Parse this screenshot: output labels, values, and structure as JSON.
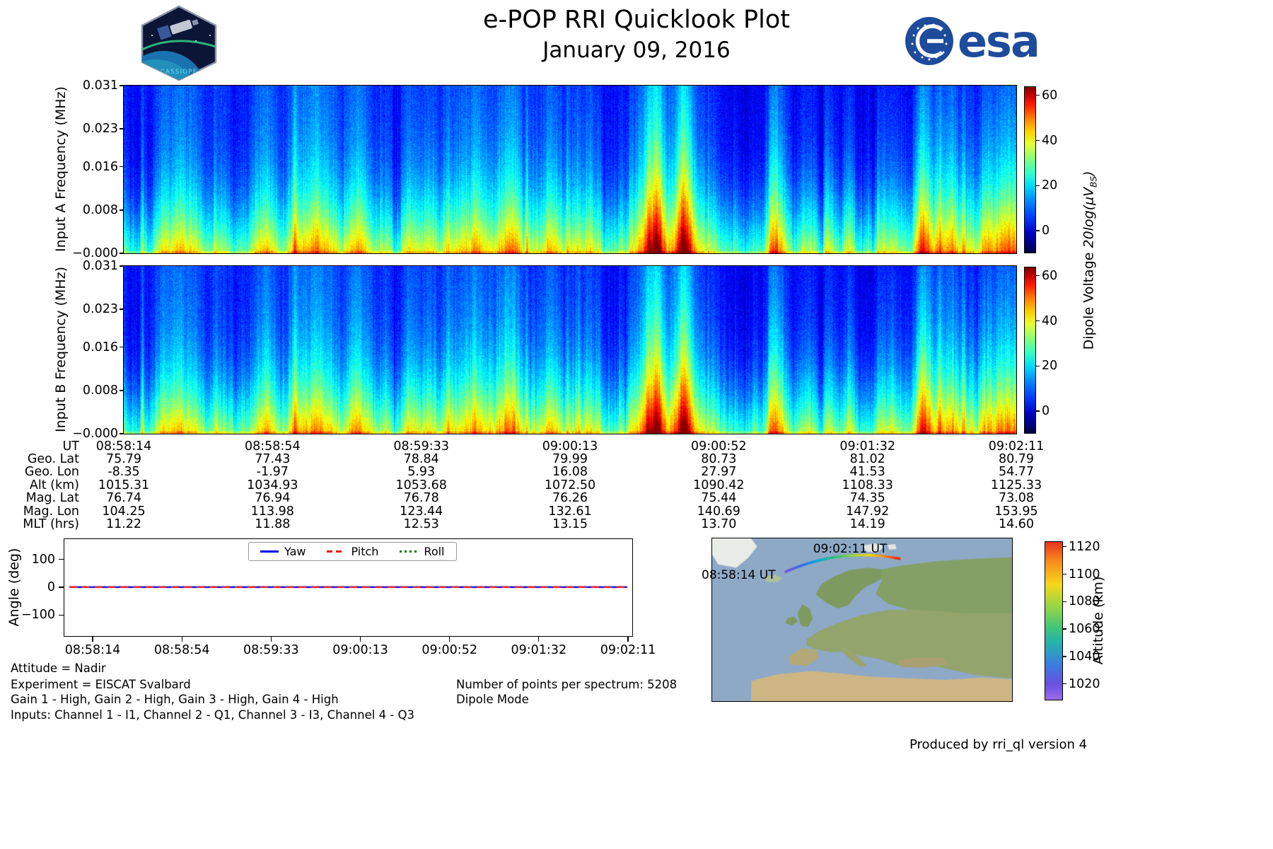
{
  "header": {
    "title": "e-POP RRI Quicklook Plot",
    "date": "January 09, 2016",
    "cassiope_label": "CASSIOPE",
    "esa_label": "esa"
  },
  "colors": {
    "esa_blue": "#1e4b9b",
    "yaw": "#0000ee",
    "pitch": "#ee1111",
    "roll": "#007700",
    "ocean": "#8ea9c6"
  },
  "colorbar_label": {
    "prefix": "Dipole Voltage ",
    "math": "20log(μV",
    "sub": "BS",
    "suffix": ")"
  },
  "chart_data": [
    {
      "type": "heatmap",
      "name": "input-a-spectrogram",
      "ylabel": "Input A Frequency (MHz)",
      "ytick_labels": [
        "0.031",
        "0.023",
        "0.016",
        "0.008",
        "−0.000"
      ],
      "ytick_values": [
        0.031,
        0.023,
        0.016,
        0.008,
        0.0
      ],
      "ylim": [
        0,
        0.031
      ],
      "x_start": "08:58:14",
      "x_end": "09:02:11",
      "description": "Broadband HF noise spectrogram: mostly blue 0-25 dB background with fine vertical striation, full-height green streaks near 08:58:30-08:59:00, dark navy columns in right half, bright green 25-40 dB band along the bottom (0-0.004 MHz)",
      "colorbar": {
        "ticks": [
          "60",
          "40",
          "20",
          "0"
        ],
        "tick_values": [
          60,
          40,
          20,
          0
        ],
        "range": [
          -10,
          64
        ],
        "colormap": "jet"
      }
    },
    {
      "type": "heatmap",
      "name": "input-b-spectrogram",
      "ylabel": "Input B Frequency (MHz)",
      "ytick_labels": [
        "0.031",
        "0.023",
        "0.016",
        "0.008",
        "−0.000"
      ],
      "ytick_values": [
        0.031,
        0.023,
        0.016,
        0.008,
        0.0
      ],
      "ylim": [
        0,
        0.031
      ],
      "x_start": "08:58:14",
      "x_end": "09:02:11",
      "description": "Same streak structure as Input A spectrogram",
      "colorbar": {
        "ticks": [
          "60",
          "40",
          "20",
          "0"
        ],
        "tick_values": [
          60,
          40,
          20,
          0
        ],
        "range": [
          -10,
          64
        ],
        "colormap": "jet"
      }
    },
    {
      "type": "table",
      "name": "ephemeris-table",
      "rows": [
        {
          "label": "UT",
          "values": [
            "08:58:14",
            "08:58:54",
            "08:59:33",
            "09:00:13",
            "09:00:52",
            "09:01:32",
            "09:02:11"
          ]
        },
        {
          "label": "Geo. Lat",
          "values": [
            "75.79",
            "77.43",
            "78.84",
            "79.99",
            "80.73",
            "81.02",
            "80.79"
          ]
        },
        {
          "label": "Geo. Lon",
          "values": [
            "-8.35",
            "-1.97",
            "5.93",
            "16.08",
            "27.97",
            "41.53",
            "54.77"
          ]
        },
        {
          "label": "Alt (km)",
          "values": [
            "1015.31",
            "1034.93",
            "1053.68",
            "1072.50",
            "1090.42",
            "1108.33",
            "1125.33"
          ]
        },
        {
          "label": "Mag. Lat",
          "values": [
            "76.74",
            "76.94",
            "76.78",
            "76.26",
            "75.44",
            "74.35",
            "73.08"
          ]
        },
        {
          "label": "Mag. Lon",
          "values": [
            "104.25",
            "113.98",
            "123.44",
            "132.61",
            "140.69",
            "147.92",
            "153.95"
          ]
        },
        {
          "label": "MLT (hrs)",
          "values": [
            "11.22",
            "11.88",
            "12.53",
            "13.15",
            "13.70",
            "14.19",
            "14.60"
          ]
        }
      ]
    },
    {
      "type": "line",
      "name": "attitude-angle-plot",
      "ylabel": "Angle (deg)",
      "ytick_labels": [
        "100",
        "0",
        "−100"
      ],
      "ytick_values": [
        100,
        0,
        -100
      ],
      "ylim": [
        -178,
        175
      ],
      "xtick_labels": [
        "08:58:14",
        "08:58:54",
        "08:59:33",
        "09:00:13",
        "09:00:52",
        "09:01:32",
        "09:02:11"
      ],
      "series": [
        {
          "name": "Yaw",
          "color": "#0000ee",
          "style": "solid",
          "values": [
            0,
            0,
            0,
            0,
            0,
            0,
            0
          ]
        },
        {
          "name": "Pitch",
          "color": "#ee1111",
          "style": "dashed",
          "values": [
            0,
            0,
            0,
            0,
            0,
            0,
            0
          ]
        },
        {
          "name": "Roll",
          "color": "#007700",
          "style": "dotted",
          "values": [
            0,
            0,
            0,
            0,
            0,
            0,
            0
          ]
        }
      ],
      "legend_position": "top-center"
    },
    {
      "type": "map",
      "name": "ground-track-map",
      "region": "Europe / North Atlantic / Greenland / Svalbard",
      "track": {
        "start_label": "08:58:14 UT",
        "end_label": "09:02:11 UT",
        "start_alt_km": 1015.31,
        "end_alt_km": 1125.33
      },
      "colorbar": {
        "label": "Altitude (km)",
        "ticks": [
          "1120",
          "1100",
          "1080",
          "1060",
          "1040",
          "1020"
        ],
        "tick_values": [
          1120,
          1100,
          1080,
          1060,
          1040,
          1020
        ],
        "range": [
          1008,
          1124
        ],
        "colormap": "rainbow"
      }
    }
  ],
  "annotations": {
    "attitude": "Attitude = Nadir",
    "experiment": "Experiment = EISCAT Svalbard",
    "gains": "Gain 1 - High, Gain 2 - High, Gain 3 - High, Gain 4 - High",
    "inputs": "Inputs: Channel 1 - I1, Channel 2 - Q1, Channel 3 - I3, Channel 4 - Q3",
    "points_per_spectrum": "Number of points per spectrum: 5208",
    "mode": "Dipole Mode",
    "produced_by": "Produced by rri_ql version 4"
  }
}
